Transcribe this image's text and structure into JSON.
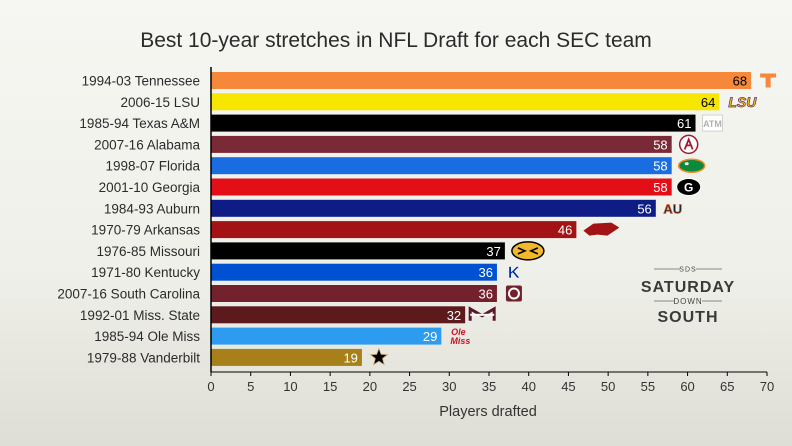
{
  "chart_data": {
    "type": "bar",
    "orientation": "horizontal",
    "title": "Best 10-year stretches in NFL Draft for each SEC team",
    "xlabel": "Players drafted",
    "ylabel": "",
    "xlim": [
      0,
      70
    ],
    "xticks": [
      0,
      5,
      10,
      15,
      20,
      25,
      30,
      35,
      40,
      45,
      50,
      55,
      60,
      65,
      70
    ],
    "grid": false,
    "legend": "none",
    "categories": [
      "1994-03 Tennessee",
      "2006-15 LSU",
      "1985-94 Texas A&M",
      "2007-16 Alabama",
      "1998-07 Florida",
      "2001-10 Georgia",
      "1984-93 Auburn",
      "1970-79 Arkansas",
      "1976-85 Missouri",
      "1971-80 Kentucky",
      "2007-16 South Carolina",
      "1992-01 Miss. State",
      "1985-94 Ole Miss",
      "1979-88 Vanderbilt"
    ],
    "values": [
      68,
      64,
      61,
      58,
      58,
      58,
      56,
      46,
      37,
      36,
      36,
      32,
      29,
      19
    ],
    "colors": [
      "#F5883A",
      "#F7E600",
      "#000000",
      "#7A2A36",
      "#1A6DE0",
      "#E30E16",
      "#0E1C85",
      "#A31316",
      "#000000",
      "#0050D2",
      "#73212C",
      "#5C1A1C",
      "#2D9BF0",
      "#A78019"
    ],
    "value_label_colors": [
      "#000000",
      "#000000",
      "#ffffff",
      "#ffffff",
      "#ffffff",
      "#ffffff",
      "#ffffff",
      "#ffffff",
      "#ffffff",
      "#ffffff",
      "#ffffff",
      "#ffffff",
      "#ffffff",
      "#ffffff"
    ],
    "logos": [
      "tennessee-t-logo",
      "lsu-logo",
      "texas-am-logo",
      "alabama-logo",
      "florida-gator-logo",
      "georgia-g-logo",
      "auburn-logo",
      "arkansas-razorback-logo",
      "missouri-tiger-logo",
      "kentucky-logo",
      "south-carolina-logo",
      "miss-state-logo",
      "ole-miss-logo",
      "vanderbilt-star-logo"
    ]
  },
  "watermark": {
    "top": "SDS",
    "line1": "SATURDAY",
    "line2": "DOWN",
    "line3": "SOUTH"
  },
  "logo_text": {
    "tennessee": "T",
    "lsu": "LSU",
    "texas_am": "ATM",
    "georgia": "G",
    "auburn": "AU",
    "kentucky": "K",
    "ole_miss": "Ole Miss",
    "miss_state": "M"
  }
}
